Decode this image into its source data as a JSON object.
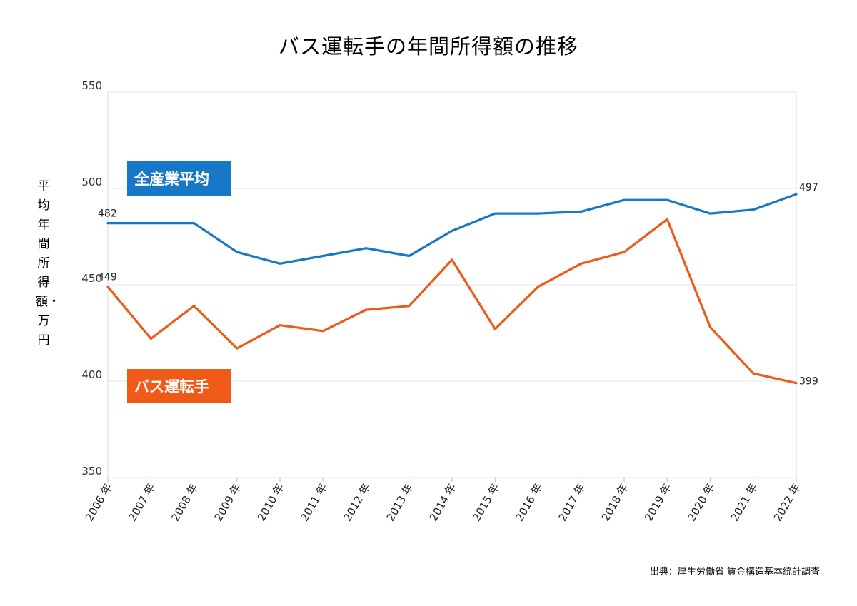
{
  "chart_data": {
    "type": "line",
    "title": "バス運転手の年間所得額の推移",
    "ylabel": "平均年間所得額・万円",
    "xlabel": "",
    "ylim": [
      350,
      550
    ],
    "yticks": [
      350,
      400,
      450,
      500,
      550
    ],
    "grid": true,
    "categories": [
      "2006 年",
      "2007 年",
      "2008 年",
      "2009 年",
      "2010 年",
      "2011 年",
      "2012 年",
      "2013 年",
      "2014 年",
      "2015 年",
      "2016 年",
      "2017 年",
      "2018 年",
      "2019 年",
      "2020 年",
      "2021 年",
      "2022 年"
    ],
    "series": [
      {
        "name": "全産業平均",
        "color": "#1878c8",
        "values": [
          482,
          482,
          482,
          467,
          461,
          465,
          469,
          465,
          478,
          487,
          487,
          488,
          494,
          494,
          487,
          489,
          497
        ],
        "labels": {
          "start": "482",
          "end": "497"
        }
      },
      {
        "name": "バス運転手",
        "color": "#f05a18",
        "values": [
          449,
          422,
          439,
          417,
          429,
          426,
          437,
          439,
          463,
          427,
          449,
          461,
          467,
          484,
          428,
          404,
          399
        ],
        "labels": {
          "start": "449",
          "end": "399"
        }
      }
    ]
  },
  "source": "出典：厚生労働省 賃金構造基本統計調査"
}
